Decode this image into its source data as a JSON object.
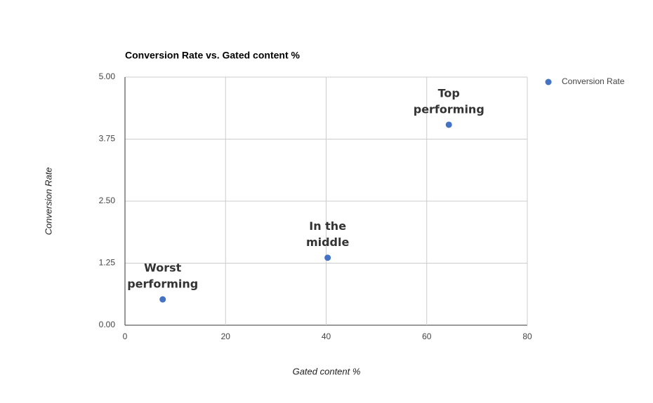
{
  "chart_data": {
    "type": "scatter",
    "title": "Conversion Rate vs. Gated content %",
    "x_label": "Gated content %",
    "y_label": "Conversion Rate",
    "x": [
      7.5,
      40.3,
      64.4
    ],
    "series": [
      {
        "name": "Conversion Rate",
        "color": "#4472c4",
        "values": [
          0.52,
          1.36,
          4.04
        ],
        "point_labels": [
          [
            "Worst",
            "performing"
          ],
          [
            "In the",
            "middle"
          ],
          [
            "Top",
            "performing"
          ]
        ]
      }
    ],
    "xlim": [
      0,
      80
    ],
    "xticks": [
      0,
      20,
      40,
      60,
      80
    ],
    "ylim": [
      0,
      5
    ],
    "yticks": [
      {
        "value": 0,
        "label": "0.00"
      },
      {
        "value": 1.25,
        "label": "1.25"
      },
      {
        "value": 2.5,
        "label": "2.50"
      },
      {
        "value": 3.75,
        "label": "3.75"
      },
      {
        "value": 5,
        "label": "5.00"
      }
    ],
    "grid": true,
    "legend": "right"
  }
}
